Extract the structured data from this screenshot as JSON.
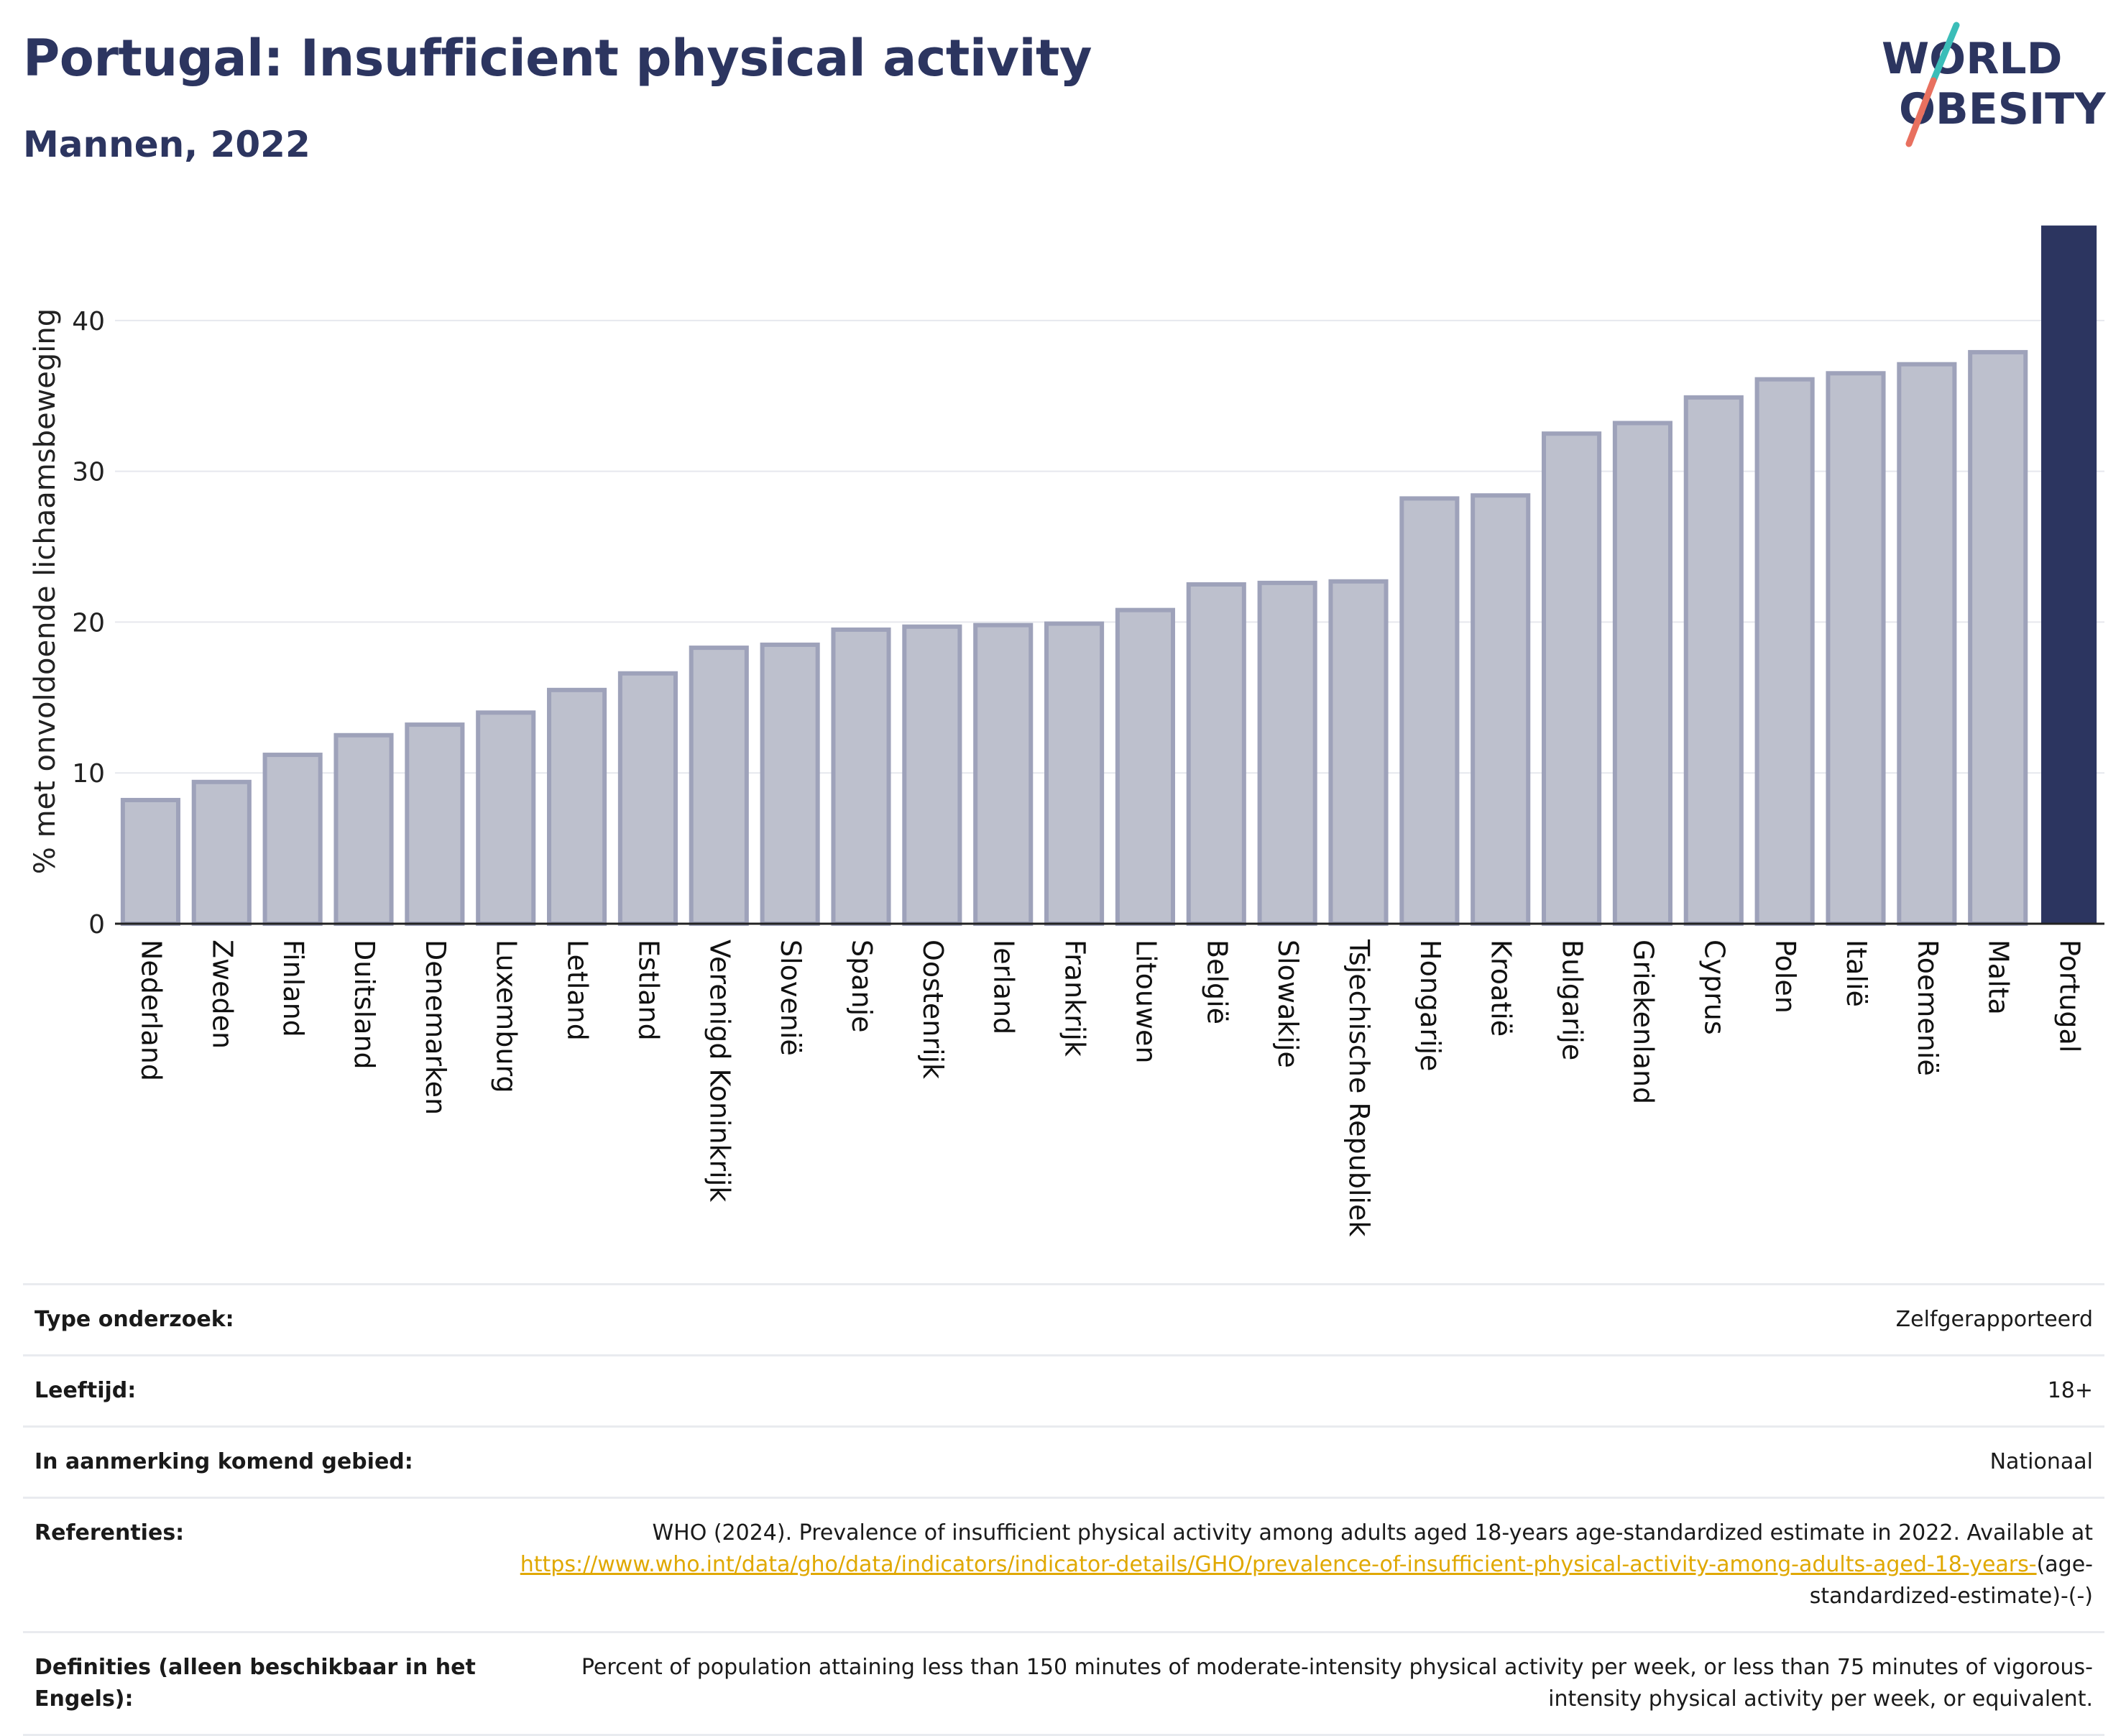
{
  "header": {
    "title": "Portugal: Insufficient physical activity",
    "subtitle": "Mannen, 2022",
    "logo_line1": "WORLD",
    "logo_line2": "OBESITY"
  },
  "colors": {
    "title": "#2c3560",
    "bar": "#bdc0cd",
    "bar_edge": "#9ea2ba",
    "highlight": "#2c3560",
    "link": "#e0a800",
    "logo_teal": "#3bbdb8",
    "logo_coral": "#e8705f"
  },
  "chart_data": {
    "type": "bar",
    "ylabel": "% met onvoldoende lichaamsbeweging",
    "ylim": [
      0,
      46
    ],
    "yticks": [
      0,
      10,
      20,
      30,
      40
    ],
    "grid": true,
    "highlight": "Portugal",
    "categories": [
      "Nederland",
      "Zweden",
      "Finland",
      "Duitsland",
      "Denemarken",
      "Luxemburg",
      "Letland",
      "Estland",
      "Verenigd Koninkrijk",
      "Slovenië",
      "Spanje",
      "Oostenrijk",
      "Ierland",
      "Frankrijk",
      "Litouwen",
      "België",
      "Slowakije",
      "Tsjechische Republiek",
      "Hongarije",
      "Kroatië",
      "Bulgarije",
      "Griekenland",
      "Cyprus",
      "Polen",
      "Italië",
      "Roemenië",
      "Malta",
      "Portugal"
    ],
    "values": [
      8.2,
      9.4,
      11.2,
      12.5,
      13.2,
      14.0,
      15.5,
      16.6,
      18.3,
      18.5,
      19.5,
      19.7,
      19.8,
      19.9,
      20.8,
      22.5,
      22.6,
      22.7,
      28.2,
      28.4,
      32.5,
      33.2,
      34.9,
      36.1,
      36.5,
      37.1,
      37.9,
      46.3
    ]
  },
  "info": {
    "survey_label": "Type onderzoek:",
    "survey_value": "Zelfgerapporteerd",
    "age_label": "Leeftijd:",
    "age_value": "18+",
    "area_label": "In aanmerking komend gebied:",
    "area_value": "Nationaal",
    "ref_label": "Referenties:",
    "ref_text": "WHO (2024). Prevalence of insufficient physical activity among adults aged 18-years age-standardized estimate in 2022. Available at",
    "ref_link": "https://www.who.int/data/gho/data/indicators/indicator-details/GHO/prevalence-of-insufficient-physical-activity-among-adults-aged-18-years-",
    "ref_tail": "(age-standardized-estimate)-(-)",
    "def_label": "Definities (alleen beschikbaar in het Engels):",
    "def_value": "Percent of population attaining less than 150 minutes of moderate-intensity physical activity per week, or less than 75 minutes of vigorous-intensity physical activity per week, or equivalent."
  }
}
